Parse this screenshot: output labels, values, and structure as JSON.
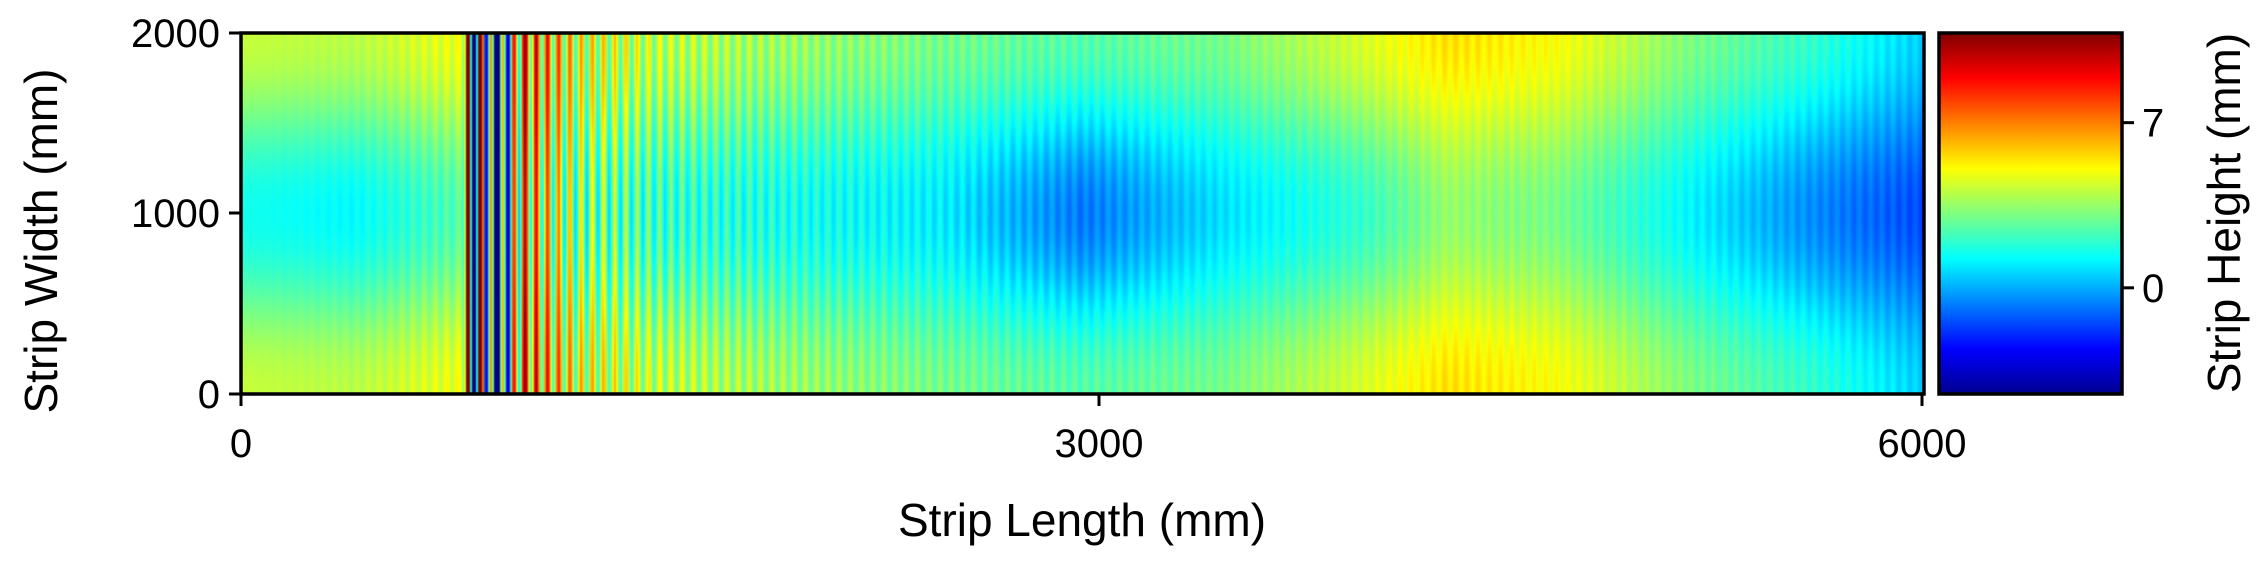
{
  "chart_data": {
    "type": "heatmap",
    "title": "",
    "xlabel": "Strip Length (mm)",
    "ylabel": "Strip Width (mm)",
    "colorbar_label": "Strip Height (mm)",
    "colormap": "jet",
    "xlim": [
      0,
      6000
    ],
    "ylim": [
      0,
      2000
    ],
    "xticks": [
      0,
      3000,
      6000
    ],
    "yticks": [
      0,
      1000,
      2000
    ],
    "clim": [
      -4.5,
      10.8
    ],
    "cbar_ticks": [
      0,
      7
    ],
    "grid": false,
    "field_profile": {
      "x_mm": [
        0,
        400,
        780,
        800,
        820,
        850,
        900,
        1000,
        1200,
        1500,
        2000,
        2500,
        3000,
        3500,
        4000,
        4300,
        4700,
        5200,
        5600,
        6000
      ],
      "edge_height_mm": [
        4.2,
        4.0,
        4.8,
        10.5,
        -4.5,
        9.0,
        -3.0,
        7.0,
        4.5,
        4.0,
        3.5,
        3.0,
        2.5,
        3.0,
        4.5,
        5.5,
        5.0,
        3.0,
        2.0,
        0.5
      ],
      "center_height_mm": [
        1.5,
        1.2,
        2.5,
        10.5,
        -4.5,
        9.0,
        -3.0,
        6.0,
        3.0,
        2.0,
        1.5,
        1.0,
        -0.8,
        0.8,
        2.0,
        3.5,
        3.0,
        1.0,
        -0.5,
        -1.5
      ],
      "oscillation_amplitude_mm": [
        0.0,
        0.2,
        0.5,
        9.0,
        9.0,
        8.0,
        7.0,
        4.5,
        2.5,
        1.2,
        0.7,
        0.5,
        0.4,
        0.3,
        0.3,
        0.3,
        0.3,
        0.3,
        0.3,
        0.3
      ],
      "oscillation_period_mm": 40
    }
  }
}
